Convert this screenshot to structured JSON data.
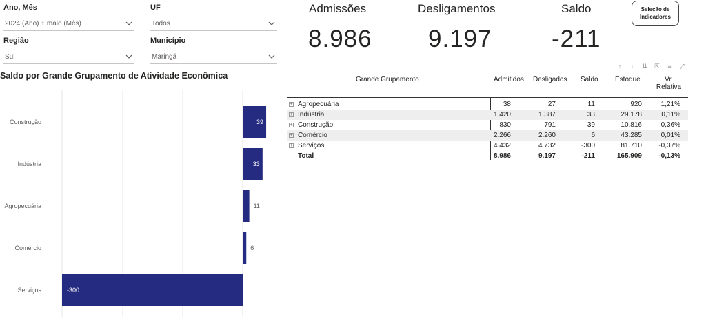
{
  "filters": {
    "ano_mes": {
      "label": "Ano, Mês",
      "value": "2024 (Ano) + maio (Mês)"
    },
    "uf": {
      "label": "UF",
      "value": "Todos"
    },
    "regiao": {
      "label": "Região",
      "value": "Sul"
    },
    "municipio": {
      "label": "Município",
      "value": "Maringá"
    }
  },
  "kpis": {
    "admissoes": {
      "label": "Admissões",
      "value": "8.986"
    },
    "desligamentos": {
      "label": "Desligamentos",
      "value": "9.197"
    },
    "saldo": {
      "label": "Saldo",
      "value": "-211"
    }
  },
  "selection_button": {
    "line1": "Seleção de",
    "line2": "Indicadores"
  },
  "toolbar_icons": [
    "arrow-up-icon",
    "arrow-down-icon",
    "double-arrow-down-icon",
    "expand-icon",
    "filter-icon",
    "focus-mode-icon"
  ],
  "chart_title": "Saldo por Grande Grupamento de Atividade Econômica",
  "chart_data": {
    "type": "bar",
    "orientation": "horizontal",
    "categories": [
      "Construção",
      "Indústria",
      "Agropecuária",
      "Comércio",
      "Serviços"
    ],
    "values": [
      39,
      33,
      11,
      6,
      -300
    ],
    "data_labels": [
      "39",
      "33",
      "11",
      "6",
      "-300"
    ],
    "color": "#252b80",
    "grid": true
  },
  "table": {
    "headers": {
      "grupo": "Grande Grupamento",
      "admitidos": "Admitidos",
      "desligados": "Desligados",
      "saldo": "Saldo",
      "estoque": "Estoque",
      "vr_line1": "Vr.",
      "vr_line2": "Relativa"
    },
    "rows": [
      {
        "grupo": "Agropecuária",
        "admitidos": "38",
        "desligados": "27",
        "saldo": "11",
        "estoque": "920",
        "vr": "1,21%"
      },
      {
        "grupo": "Indústria",
        "admitidos": "1.420",
        "desligados": "1.387",
        "saldo": "33",
        "estoque": "29.178",
        "vr": "0,11%"
      },
      {
        "grupo": "Construção",
        "admitidos": "830",
        "desligados": "791",
        "saldo": "39",
        "estoque": "10.816",
        "vr": "0,36%"
      },
      {
        "grupo": "Comércio",
        "admitidos": "2.266",
        "desligados": "2.260",
        "saldo": "6",
        "estoque": "43.285",
        "vr": "0,01%"
      },
      {
        "grupo": "Serviços",
        "admitidos": "4.432",
        "desligados": "4.732",
        "saldo": "-300",
        "estoque": "81.710",
        "vr": "-0,37%"
      }
    ],
    "total": {
      "grupo": "Total",
      "admitidos": "8.986",
      "desligados": "9.197",
      "saldo": "-211",
      "estoque": "165.909",
      "vr": "-0,13%"
    }
  }
}
